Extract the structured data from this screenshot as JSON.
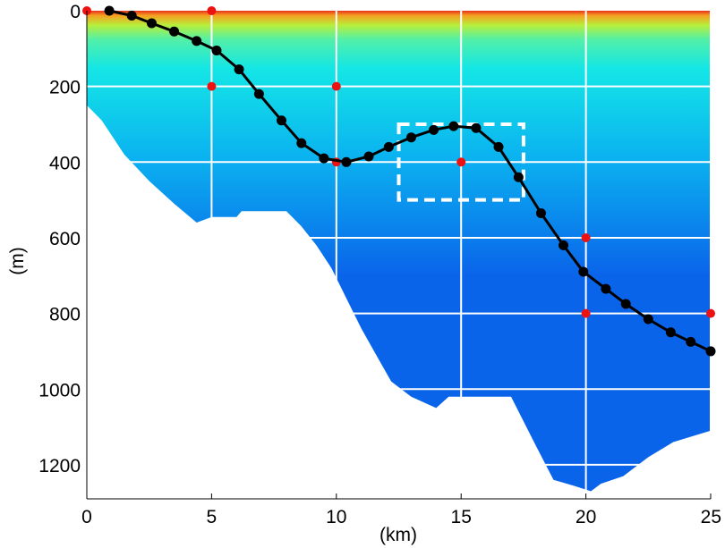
{
  "chart_data": {
    "type": "line",
    "title": "",
    "xlabel": "(km)",
    "ylabel": "(m)",
    "xlim": [
      0,
      25
    ],
    "ylim": [
      1290,
      0
    ],
    "y_inverted": true,
    "grid": true,
    "grid_color": "#ffffff",
    "x_ticks": [
      0,
      5,
      10,
      15,
      20,
      25
    ],
    "y_ticks": [
      0,
      200,
      400,
      600,
      800,
      1000,
      1200
    ],
    "x_tick_labels": [
      "0",
      "5",
      "10",
      "15",
      "20",
      "25"
    ],
    "y_tick_labels": [
      "0",
      "200",
      "400",
      "600",
      "800",
      "1000",
      "1200"
    ],
    "background_field": {
      "type": "heatmap",
      "colormap": "jet",
      "surface_colors": [
        "#e8321c",
        "#f5a020",
        "#b7ef3c",
        "#52f0a8",
        "#14e6e6"
      ],
      "mid_color": "#0bb4f0",
      "deep_color": "#0a64ea",
      "bottom_profile": [
        {
          "x": 0,
          "depth": 250
        },
        {
          "x": 0.6,
          "depth": 290
        },
        {
          "x": 1.5,
          "depth": 380
        },
        {
          "x": 2.5,
          "depth": 450
        },
        {
          "x": 3.5,
          "depth": 510
        },
        {
          "x": 4.4,
          "depth": 560
        },
        {
          "x": 5.0,
          "depth": 545
        },
        {
          "x": 6.0,
          "depth": 545
        },
        {
          "x": 6.2,
          "depth": 530
        },
        {
          "x": 8.0,
          "depth": 530
        },
        {
          "x": 8.6,
          "depth": 570
        },
        {
          "x": 9.2,
          "depth": 620
        },
        {
          "x": 9.8,
          "depth": 680
        },
        {
          "x": 10.4,
          "depth": 760
        },
        {
          "x": 11.0,
          "depth": 840
        },
        {
          "x": 11.6,
          "depth": 910
        },
        {
          "x": 12.2,
          "depth": 980
        },
        {
          "x": 13.0,
          "depth": 1020
        },
        {
          "x": 14.0,
          "depth": 1050
        },
        {
          "x": 14.5,
          "depth": 1020
        },
        {
          "x": 16.0,
          "depth": 1020
        },
        {
          "x": 17.0,
          "depth": 1020
        },
        {
          "x": 18.0,
          "depth": 1150
        },
        {
          "x": 18.7,
          "depth": 1240
        },
        {
          "x": 19.5,
          "depth": 1255
        },
        {
          "x": 20.2,
          "depth": 1270
        },
        {
          "x": 20.6,
          "depth": 1250
        },
        {
          "x": 21.5,
          "depth": 1230
        },
        {
          "x": 22.5,
          "depth": 1180
        },
        {
          "x": 23.5,
          "depth": 1140
        },
        {
          "x": 24.5,
          "depth": 1120
        },
        {
          "x": 25,
          "depth": 1110
        }
      ]
    },
    "series": [
      {
        "color": "#000000",
        "marker": "circle",
        "points": [
          {
            "x": 0.9,
            "y": 0
          },
          {
            "x": 1.8,
            "y": 13
          },
          {
            "x": 2.6,
            "y": 33
          },
          {
            "x": 3.5,
            "y": 55
          },
          {
            "x": 4.4,
            "y": 80
          },
          {
            "x": 5.2,
            "y": 105
          },
          {
            "x": 6.1,
            "y": 155
          },
          {
            "x": 6.9,
            "y": 220
          },
          {
            "x": 7.8,
            "y": 290
          },
          {
            "x": 8.6,
            "y": 350
          },
          {
            "x": 9.5,
            "y": 390
          },
          {
            "x": 10.4,
            "y": 400
          },
          {
            "x": 11.3,
            "y": 385
          },
          {
            "x": 12.1,
            "y": 360
          },
          {
            "x": 13.0,
            "y": 335
          },
          {
            "x": 13.9,
            "y": 315
          },
          {
            "x": 14.7,
            "y": 305
          },
          {
            "x": 15.6,
            "y": 310
          },
          {
            "x": 16.5,
            "y": 360
          },
          {
            "x": 17.3,
            "y": 440
          },
          {
            "x": 18.2,
            "y": 535
          },
          {
            "x": 19.1,
            "y": 620
          },
          {
            "x": 19.9,
            "y": 690
          },
          {
            "x": 20.8,
            "y": 735
          },
          {
            "x": 21.6,
            "y": 775
          },
          {
            "x": 22.5,
            "y": 815
          },
          {
            "x": 23.4,
            "y": 850
          },
          {
            "x": 24.2,
            "y": 875
          },
          {
            "x": 25.0,
            "y": 900
          }
        ]
      }
    ],
    "red_markers": [
      {
        "x": 0,
        "y": 0
      },
      {
        "x": 5,
        "y": 0
      },
      {
        "x": 5,
        "y": 200
      },
      {
        "x": 10,
        "y": 200
      },
      {
        "x": 10,
        "y": 400
      },
      {
        "x": 15,
        "y": 400
      },
      {
        "x": 20,
        "y": 600
      },
      {
        "x": 20,
        "y": 800
      },
      {
        "x": 25,
        "y": 800
      }
    ],
    "red_marker_color": "#ee1111",
    "highlight_box": {
      "x0": 12.5,
      "x1": 17.5,
      "y0": 300,
      "y1": 500,
      "style": "dashed",
      "color": "#ffffff"
    }
  }
}
